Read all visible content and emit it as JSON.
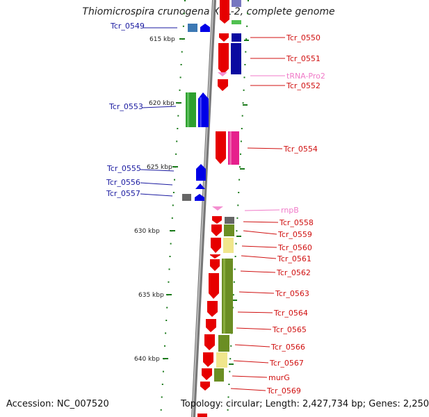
{
  "title": "Thiomicrospira crunogena XCL-2, complete genome",
  "footer": {
    "accession": "Accession: NC_007520",
    "topology": "Topology: circular; Length: 2,427,734 bp; Genes: 2,250"
  },
  "kbp_labels": [
    "615 kbp",
    "620 kbp",
    "625 kbp",
    "630 kbp",
    "635 kbp",
    "640 kbp"
  ],
  "left_genes": [
    "Tcr_0549",
    "Tcr_0553",
    "Tcr_0555",
    "Tcr_0556",
    "Tcr_0557"
  ],
  "right_genes": [
    "Tcr_0550",
    "Tcr_0551",
    "tRNA-Pro2",
    "Tcr_0552",
    "Tcr_0554",
    "rnpB",
    "Tcr_0558",
    "Tcr_0559",
    "Tcr_0560",
    "Tcr_0561",
    "Tcr_0562",
    "Tcr_0563",
    "Tcr_0564",
    "Tcr_0565",
    "Tcr_0566",
    "Tcr_0567",
    "murG",
    "Tcr_0569"
  ],
  "colors": {
    "forward_gene": "#e60000",
    "reverse_gene": "#0000e6",
    "rna_gene": "#f48fd0",
    "left_label": "#1a1aa0",
    "right_label": "#d01010",
    "rna_label": "#f07ac8",
    "tick": "#1b7a1b",
    "backbone": "#8a8a8a"
  }
}
